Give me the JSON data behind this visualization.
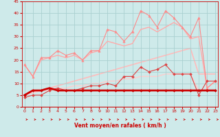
{
  "background_color": "#ceeaea",
  "grid_color": "#aad0d0",
  "x": [
    0,
    1,
    2,
    3,
    4,
    5,
    6,
    7,
    8,
    9,
    10,
    11,
    12,
    13,
    14,
    15,
    16,
    17,
    18,
    19,
    20,
    21,
    22,
    23
  ],
  "lines": [
    {
      "y": [
        18,
        13,
        21,
        21,
        24,
        22,
        23,
        20,
        24,
        24,
        33,
        32,
        28,
        32,
        41,
        39,
        34,
        41,
        38,
        34,
        30,
        38,
        8,
        11
      ],
      "color": "#ff8888",
      "lw": 0.8,
      "marker": "^",
      "ms": 2.5,
      "zorder": 4
    },
    {
      "y": [
        18,
        13,
        20,
        21,
        22,
        21,
        22,
        20,
        23,
        24,
        28,
        27,
        26,
        27,
        33,
        34,
        32,
        34,
        36,
        34,
        29,
        30,
        8,
        11
      ],
      "color": "#ffaaaa",
      "lw": 1.0,
      "marker": null,
      "ms": 0,
      "zorder": 2
    },
    {
      "y": [
        5,
        6,
        7,
        8,
        9,
        10,
        11,
        12,
        13,
        14,
        15,
        16,
        17,
        18,
        19,
        20,
        21,
        22,
        23,
        24,
        25,
        14,
        14,
        14
      ],
      "color": "#ffbbbb",
      "lw": 1.2,
      "marker": null,
      "ms": 0,
      "zorder": 1
    },
    {
      "y": [
        4,
        5,
        5,
        7,
        8,
        7,
        7,
        8,
        9,
        9,
        10,
        9,
        13,
        13,
        17,
        15,
        16,
        18,
        14,
        14,
        14,
        5,
        11,
        11
      ],
      "color": "#dd4444",
      "lw": 0.8,
      "marker": "D",
      "ms": 2,
      "zorder": 4
    },
    {
      "y": [
        5,
        7,
        7,
        8,
        7,
        7,
        7,
        7,
        7,
        7,
        7,
        7,
        7,
        7,
        7,
        7,
        7,
        7,
        7,
        7,
        7,
        7,
        7,
        7
      ],
      "color": "#cc0000",
      "lw": 2.0,
      "marker": "D",
      "ms": 2,
      "zorder": 5
    },
    {
      "y": [
        5,
        6,
        7,
        7,
        8,
        8,
        9,
        9,
        10,
        10,
        11,
        11,
        12,
        12,
        13,
        13,
        13,
        14,
        14,
        14,
        14,
        7,
        7,
        7
      ],
      "color": "#ffcccc",
      "lw": 1.0,
      "marker": null,
      "ms": 0,
      "zorder": 1
    }
  ],
  "ylim": [
    0,
    45
  ],
  "xlim": [
    -0.3,
    23.3
  ],
  "yticks": [
    0,
    5,
    10,
    15,
    20,
    25,
    30,
    35,
    40,
    45
  ],
  "xticks": [
    0,
    1,
    2,
    3,
    4,
    5,
    6,
    7,
    8,
    9,
    10,
    11,
    12,
    13,
    14,
    15,
    16,
    17,
    18,
    19,
    20,
    21,
    22,
    23
  ],
  "tick_color": "#cc0000",
  "label_color": "#cc0000",
  "xlabel": "Vent moyen/en rafales ( km/h )"
}
